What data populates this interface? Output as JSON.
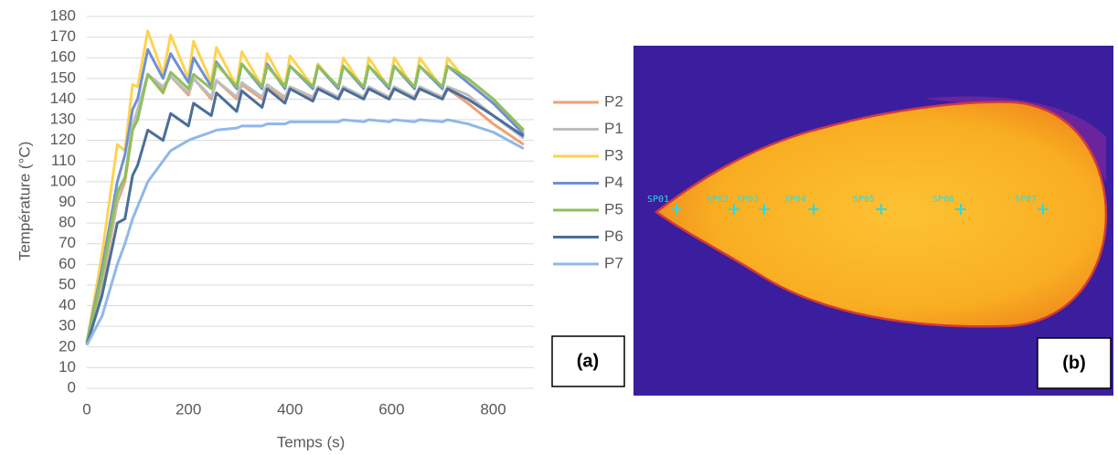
{
  "chart_data": {
    "type": "line",
    "panel_label": "(a)",
    "x_label": "Temps (s)",
    "y_label": "Température (°C)",
    "xlim": [
      0,
      880
    ],
    "xticks": [
      0,
      200,
      400,
      600,
      800
    ],
    "ylim": [
      0,
      180
    ],
    "yticks": [
      0,
      10,
      20,
      30,
      40,
      50,
      60,
      70,
      80,
      90,
      100,
      110,
      120,
      130,
      140,
      150,
      160,
      170,
      180
    ],
    "grid": true,
    "legend": "right",
    "x": [
      0,
      30,
      60,
      75,
      90,
      100,
      120,
      150,
      165,
      200,
      210,
      245,
      255,
      295,
      305,
      345,
      355,
      390,
      400,
      445,
      455,
      495,
      505,
      545,
      555,
      595,
      605,
      645,
      655,
      700,
      710,
      750,
      800,
      860
    ],
    "series": [
      {
        "name": "P2",
        "color": "#f0a070",
        "values": [
          22,
          50,
          90,
          100,
          125,
          132,
          152,
          145,
          151,
          142,
          150,
          140,
          149,
          140,
          147,
          140,
          146,
          140,
          145,
          140,
          145,
          140,
          145,
          140,
          145,
          140,
          145,
          140,
          145,
          140,
          145,
          138,
          128,
          118
        ]
      },
      {
        "name": "P1",
        "color": "#bdbdbd",
        "values": [
          22,
          52,
          92,
          102,
          127,
          135,
          152,
          146,
          151,
          143,
          150,
          141,
          149,
          141,
          148,
          141,
          147,
          141,
          146,
          141,
          146,
          141,
          146,
          141,
          146,
          141,
          146,
          141,
          146,
          141,
          146,
          142,
          132,
          121
        ]
      },
      {
        "name": "P3",
        "color": "#ffd34f",
        "values": [
          22,
          65,
          118,
          115,
          147,
          146,
          173,
          152,
          171,
          150,
          168,
          148,
          165,
          146,
          163,
          146,
          162,
          146,
          161,
          146,
          157,
          145,
          160,
          145,
          160,
          145,
          160,
          145,
          160,
          145,
          160,
          148,
          138,
          124
        ]
      },
      {
        "name": "P4",
        "color": "#6f8fd6",
        "values": [
          22,
          58,
          100,
          113,
          135,
          140,
          164,
          150,
          162,
          148,
          160,
          146,
          158,
          145,
          157,
          145,
          157,
          145,
          156,
          145,
          156,
          145,
          156,
          145,
          156,
          145,
          156,
          145,
          156,
          145,
          156,
          148,
          138,
          123
        ]
      },
      {
        "name": "P5",
        "color": "#8fbf5a",
        "values": [
          22,
          55,
          95,
          102,
          125,
          130,
          152,
          143,
          153,
          145,
          152,
          145,
          157,
          146,
          157,
          146,
          156,
          146,
          156,
          146,
          156,
          146,
          156,
          146,
          156,
          146,
          156,
          146,
          156,
          146,
          156,
          150,
          140,
          125
        ]
      },
      {
        "name": "P6",
        "color": "#4a6f9a",
        "values": [
          21,
          45,
          80,
          82,
          103,
          108,
          125,
          120,
          133,
          127,
          138,
          132,
          143,
          134,
          144,
          136,
          145,
          138,
          145,
          139,
          145,
          140,
          145,
          140,
          145,
          140,
          145,
          140,
          145,
          140,
          145,
          140,
          132,
          122
        ]
      },
      {
        "name": "P7",
        "color": "#8fb8e8",
        "values": [
          21,
          35,
          60,
          70,
          82,
          88,
          100,
          110,
          115,
          120,
          121,
          124,
          125,
          126,
          127,
          127,
          128,
          128,
          129,
          129,
          129,
          129,
          130,
          129,
          130,
          129,
          130,
          129,
          130,
          129,
          130,
          128,
          124,
          116
        ]
      }
    ]
  },
  "thermal_image": {
    "panel_label": "(b)",
    "spots": [
      "SP01",
      "SP02",
      "SP03",
      "SP04",
      "SP05",
      "SP06",
      "SP07"
    ]
  }
}
